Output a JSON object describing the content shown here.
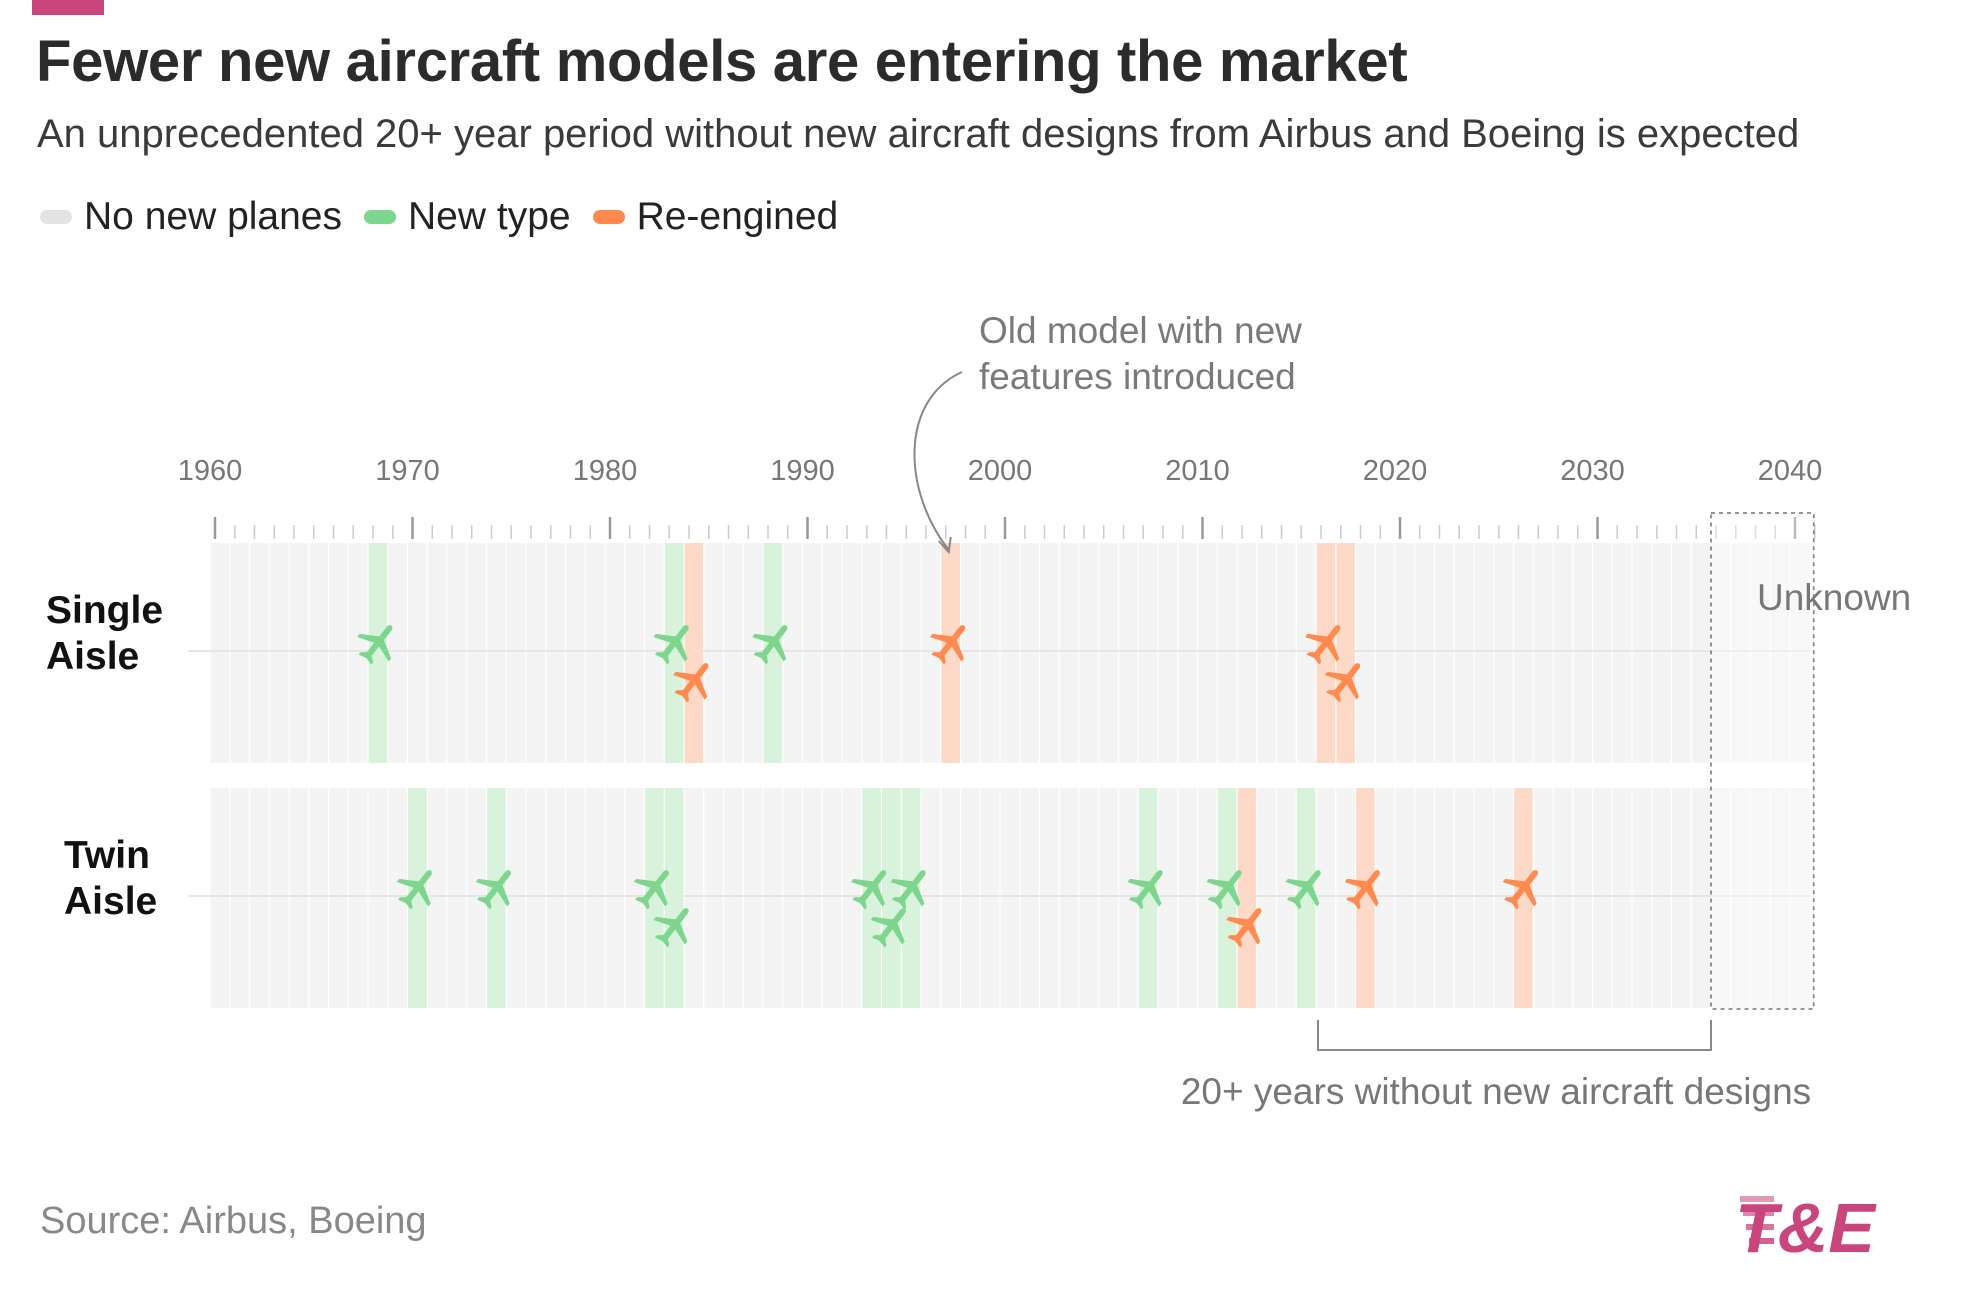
{
  "header": {
    "title": "Fewer new aircraft models are entering the market",
    "subtitle": "An unprecedented 20+ year period without new aircraft designs from Airbus and Boeing is expected"
  },
  "footer": {
    "source": "Source: Airbus, Boeing",
    "logo_text": "T&E"
  },
  "colors": {
    "accent": "#c8457e",
    "no_new": "#e3e3e3",
    "new_type": "#7ed68e",
    "re_engined": "#ff8a50",
    "background_cell": "#f4f4f4"
  },
  "chart_data": {
    "type": "timeline",
    "title": "Fewer new aircraft models are entering the market",
    "x_range": [
      1960,
      2041
    ],
    "x_ticks": [
      1960,
      1970,
      1980,
      1990,
      2000,
      2010,
      2020,
      2030,
      2040
    ],
    "x_tick_labels": [
      "1960",
      "1970",
      "1980",
      "1990",
      "2000",
      "2010",
      "2020",
      "2030",
      "2040"
    ],
    "legend": [
      {
        "key": "none",
        "label": "No new planes"
      },
      {
        "key": "new",
        "label": "New type"
      },
      {
        "key": "reengined",
        "label": "Re-engined"
      }
    ],
    "rows": [
      {
        "name": "Single Aisle",
        "label_lines": [
          "Single",
          "Aisle"
        ],
        "events": [
          {
            "year": 1968,
            "kind": "new"
          },
          {
            "year": 1983,
            "kind": "new"
          },
          {
            "year": 1984,
            "kind": "reengined"
          },
          {
            "year": 1988,
            "kind": "new"
          },
          {
            "year": 1997,
            "kind": "reengined"
          },
          {
            "year": 2016,
            "kind": "reengined"
          },
          {
            "year": 2017,
            "kind": "reengined"
          }
        ]
      },
      {
        "name": "Twin Aisle",
        "label_lines": [
          "Twin",
          "Aisle"
        ],
        "events": [
          {
            "year": 1970,
            "kind": "new"
          },
          {
            "year": 1974,
            "kind": "new"
          },
          {
            "year": 1982,
            "kind": "new"
          },
          {
            "year": 1983,
            "kind": "new"
          },
          {
            "year": 1993,
            "kind": "new"
          },
          {
            "year": 1994,
            "kind": "new"
          },
          {
            "year": 1995,
            "kind": "new"
          },
          {
            "year": 2007,
            "kind": "new"
          },
          {
            "year": 2011,
            "kind": "new"
          },
          {
            "year": 2012,
            "kind": "reengined"
          },
          {
            "year": 2015,
            "kind": "new"
          },
          {
            "year": 2018,
            "kind": "reengined"
          },
          {
            "year": 2026,
            "kind": "reengined"
          }
        ]
      }
    ],
    "annotations": {
      "old_model_lines": [
        "Old model with new",
        "features introduced"
      ],
      "old_model_year": 1997,
      "unknown_label": "Unknown",
      "unknown_start_year": 2036,
      "gap_label": "20+ years without new aircraft designs",
      "gap_range": [
        2016,
        2036
      ]
    }
  }
}
